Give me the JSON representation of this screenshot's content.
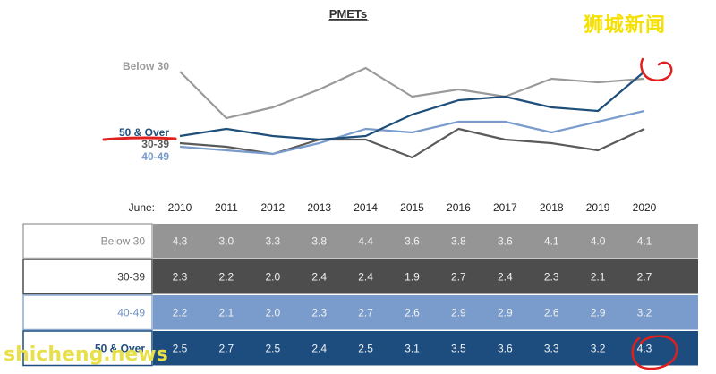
{
  "chart_data": {
    "type": "line",
    "title": "PMETs",
    "x_prefix": "June:",
    "categories": [
      "2010",
      "2011",
      "2012",
      "2013",
      "2014",
      "2015",
      "2016",
      "2017",
      "2018",
      "2019",
      "2020"
    ],
    "ylim": [
      1.7,
      4.6
    ],
    "series": [
      {
        "name": "Below 30",
        "color": "#9a9a9a",
        "values": [
          4.3,
          3.0,
          3.3,
          3.8,
          4.4,
          3.6,
          3.8,
          3.6,
          4.1,
          4.0,
          4.1
        ]
      },
      {
        "name": "30-39",
        "color": "#5a5a5a",
        "values": [
          2.3,
          2.2,
          2.0,
          2.4,
          2.4,
          1.9,
          2.7,
          2.4,
          2.3,
          2.1,
          2.7
        ]
      },
      {
        "name": "40-49",
        "color": "#7a9ccc",
        "values": [
          2.2,
          2.1,
          2.0,
          2.3,
          2.7,
          2.6,
          2.9,
          2.9,
          2.6,
          2.9,
          3.2
        ]
      },
      {
        "name": "50 & Over",
        "color": "#1e4e7a",
        "values": [
          2.5,
          2.7,
          2.5,
          2.4,
          2.5,
          3.1,
          3.5,
          3.6,
          3.3,
          3.2,
          4.3
        ]
      }
    ],
    "table_rows": [
      {
        "label": "Below 30",
        "values": [
          "4.3",
          "3.0",
          "3.3",
          "3.8",
          "4.4",
          "3.6",
          "3.8",
          "3.6",
          "4.1",
          "4.0",
          "4.1"
        ]
      },
      {
        "label": "30-39",
        "values": [
          "2.3",
          "2.2",
          "2.0",
          "2.4",
          "2.4",
          "1.9",
          "2.7",
          "2.4",
          "2.3",
          "2.1",
          "2.7"
        ]
      },
      {
        "label": "40-49",
        "values": [
          "2.2",
          "2.1",
          "2.0",
          "2.3",
          "2.7",
          "2.6",
          "2.9",
          "2.9",
          "2.6",
          "2.9",
          "3.2"
        ]
      },
      {
        "label": "50 & Over",
        "values": [
          "2.5",
          "2.7",
          "2.5",
          "2.4",
          "2.5",
          "3.1",
          "3.5",
          "3.6",
          "3.3",
          "3.2",
          "4.3"
        ]
      }
    ],
    "table_styles": [
      {
        "fill": "#959595",
        "label_color": "#8a8a8a",
        "text": "#f2f2f2",
        "border": "#a8a8a8"
      },
      {
        "fill": "#4d4d4d",
        "label_color": "#3a3a3a",
        "text": "#f2f2f2",
        "border": "#4d4d4d"
      },
      {
        "fill": "#7a9ccc",
        "label_color": "#6f90c0",
        "text": "#f2f2f2",
        "border": "#8aa8d2"
      },
      {
        "fill": "#1d4d7e",
        "label_color": "#1d4d7e",
        "text": "#f2f2f2",
        "border": "#1d4d7e"
      }
    ],
    "annotation_color": "#e0201e"
  },
  "watermarks": {
    "top_right": "狮城新闻",
    "bottom_left": "shicheng.news"
  }
}
